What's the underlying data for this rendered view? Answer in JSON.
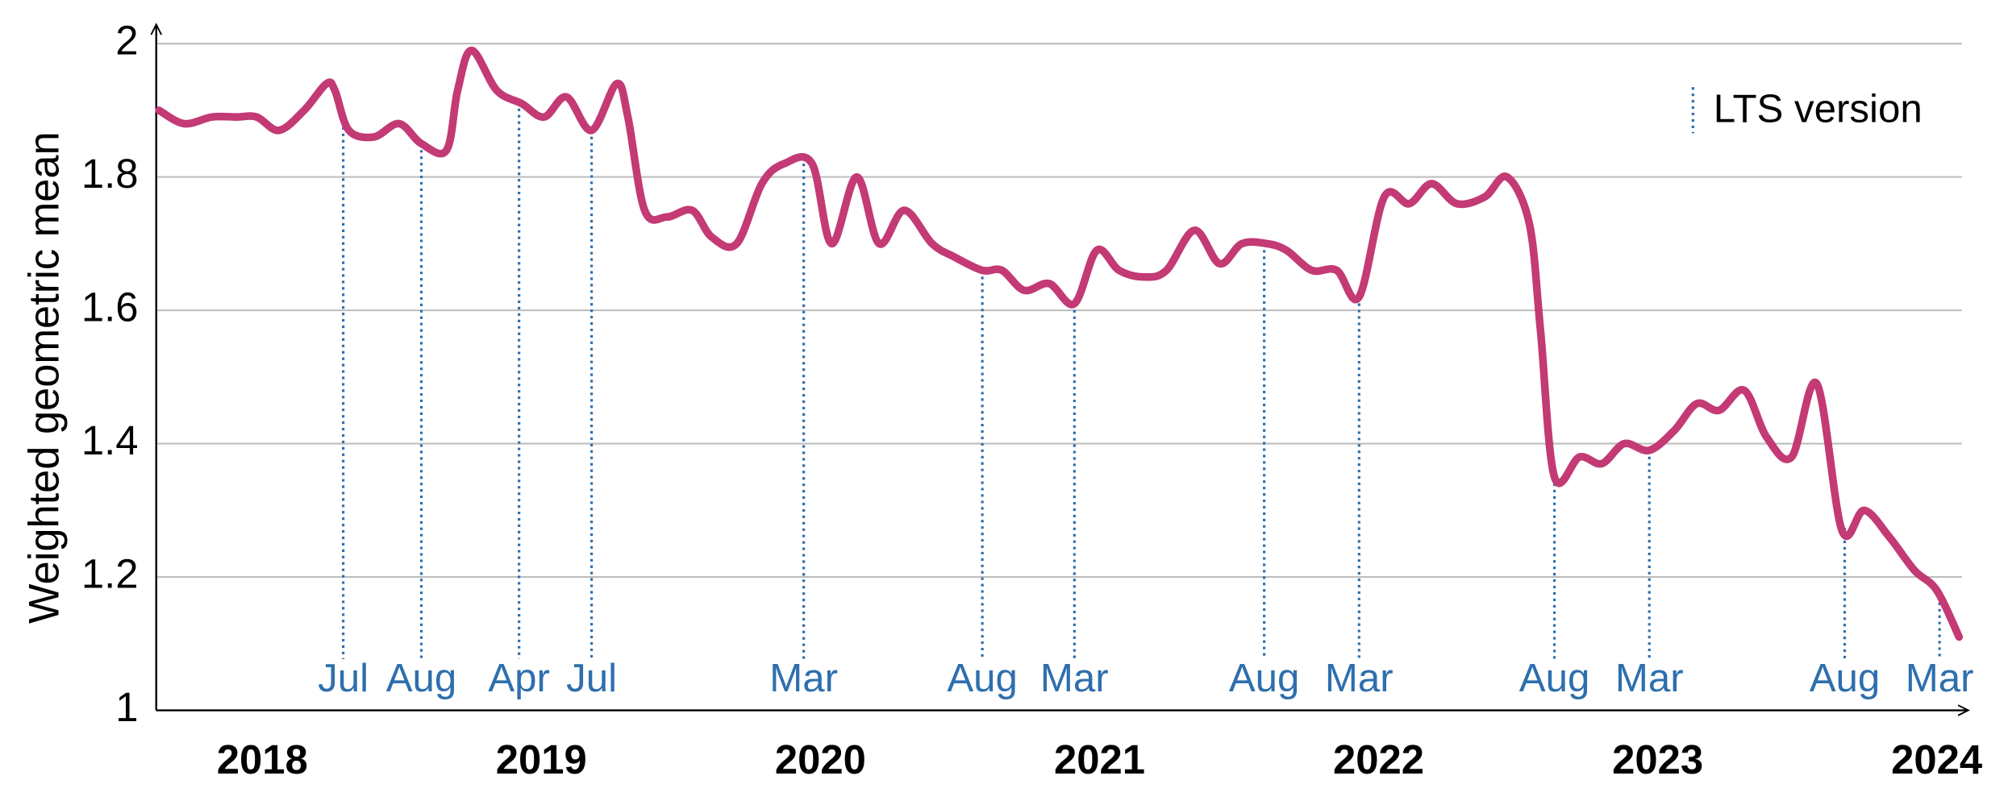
{
  "chart_data": {
    "type": "line",
    "y_label": "Weighted geometric mean",
    "legend_label": "LTS version",
    "x": [
      2017.63,
      2017.72,
      2017.82,
      2017.91,
      2017.98,
      2018.06,
      2018.15,
      2018.23,
      2018.26,
      2018.31,
      2018.4,
      2018.49,
      2018.57,
      2018.66,
      2018.7,
      2018.75,
      2018.84,
      2018.93,
      2019.01,
      2019.09,
      2019.18,
      2019.27,
      2019.31,
      2019.37,
      2019.45,
      2019.54,
      2019.61,
      2019.7,
      2019.79,
      2019.87,
      2019.97,
      2020.04,
      2020.13,
      2020.21,
      2020.3,
      2020.4,
      2020.48,
      2020.58,
      2020.65,
      2020.73,
      2020.82,
      2020.91,
      2020.99,
      2021.07,
      2021.16,
      2021.24,
      2021.34,
      2021.43,
      2021.51,
      2021.6,
      2021.67,
      2021.76,
      2021.85,
      2021.93,
      2022.02,
      2022.11,
      2022.19,
      2022.28,
      2022.38,
      2022.46,
      2022.54,
      2022.58,
      2022.63,
      2022.72,
      2022.8,
      2022.88,
      2022.97,
      2023.06,
      2023.14,
      2023.22,
      2023.31,
      2023.39,
      2023.48,
      2023.57,
      2023.66,
      2023.74,
      2023.83,
      2023.92,
      2024.0,
      2024.08
    ],
    "series": [
      {
        "color": "#c33a74",
        "values": [
          1.9,
          1.88,
          1.89,
          1.89,
          1.89,
          1.87,
          1.9,
          1.94,
          1.93,
          1.87,
          1.86,
          1.88,
          1.85,
          1.84,
          1.93,
          1.99,
          1.93,
          1.91,
          1.89,
          1.92,
          1.87,
          1.94,
          1.89,
          1.75,
          1.74,
          1.75,
          1.71,
          1.7,
          1.79,
          1.82,
          1.82,
          1.7,
          1.8,
          1.7,
          1.75,
          1.7,
          1.68,
          1.66,
          1.66,
          1.63,
          1.64,
          1.61,
          1.69,
          1.66,
          1.65,
          1.66,
          1.72,
          1.67,
          1.7,
          1.7,
          1.69,
          1.66,
          1.66,
          1.62,
          1.77,
          1.76,
          1.79,
          1.76,
          1.77,
          1.8,
          1.73,
          1.57,
          1.35,
          1.38,
          1.37,
          1.4,
          1.39,
          1.42,
          1.46,
          1.45,
          1.48,
          1.41,
          1.38,
          1.49,
          1.27,
          1.3,
          1.26,
          1.21,
          1.18,
          1.11
        ]
      }
    ],
    "markers": {
      "color": "#2e6fad",
      "x": [
        2018.29,
        2018.57,
        2018.92,
        2019.18,
        2019.94,
        2020.58,
        2020.91,
        2021.59,
        2021.93,
        2022.63,
        2022.97,
        2023.67,
        2024.01
      ],
      "labels": [
        "Jul",
        "Aug",
        "Apr",
        "Jul",
        "Mar",
        "Aug",
        "Mar",
        "Aug",
        "Mar",
        "Aug",
        "Mar",
        "Aug",
        "Mar"
      ]
    },
    "xlim": [
      2017.62,
      2024.09
    ],
    "xticks": [
      2018,
      2019,
      2020,
      2021,
      2022,
      2023,
      2024
    ],
    "ylim": [
      1,
      2
    ],
    "yticks": [
      1,
      1.2,
      1.4,
      1.6,
      1.8,
      2
    ],
    "grid": true
  }
}
